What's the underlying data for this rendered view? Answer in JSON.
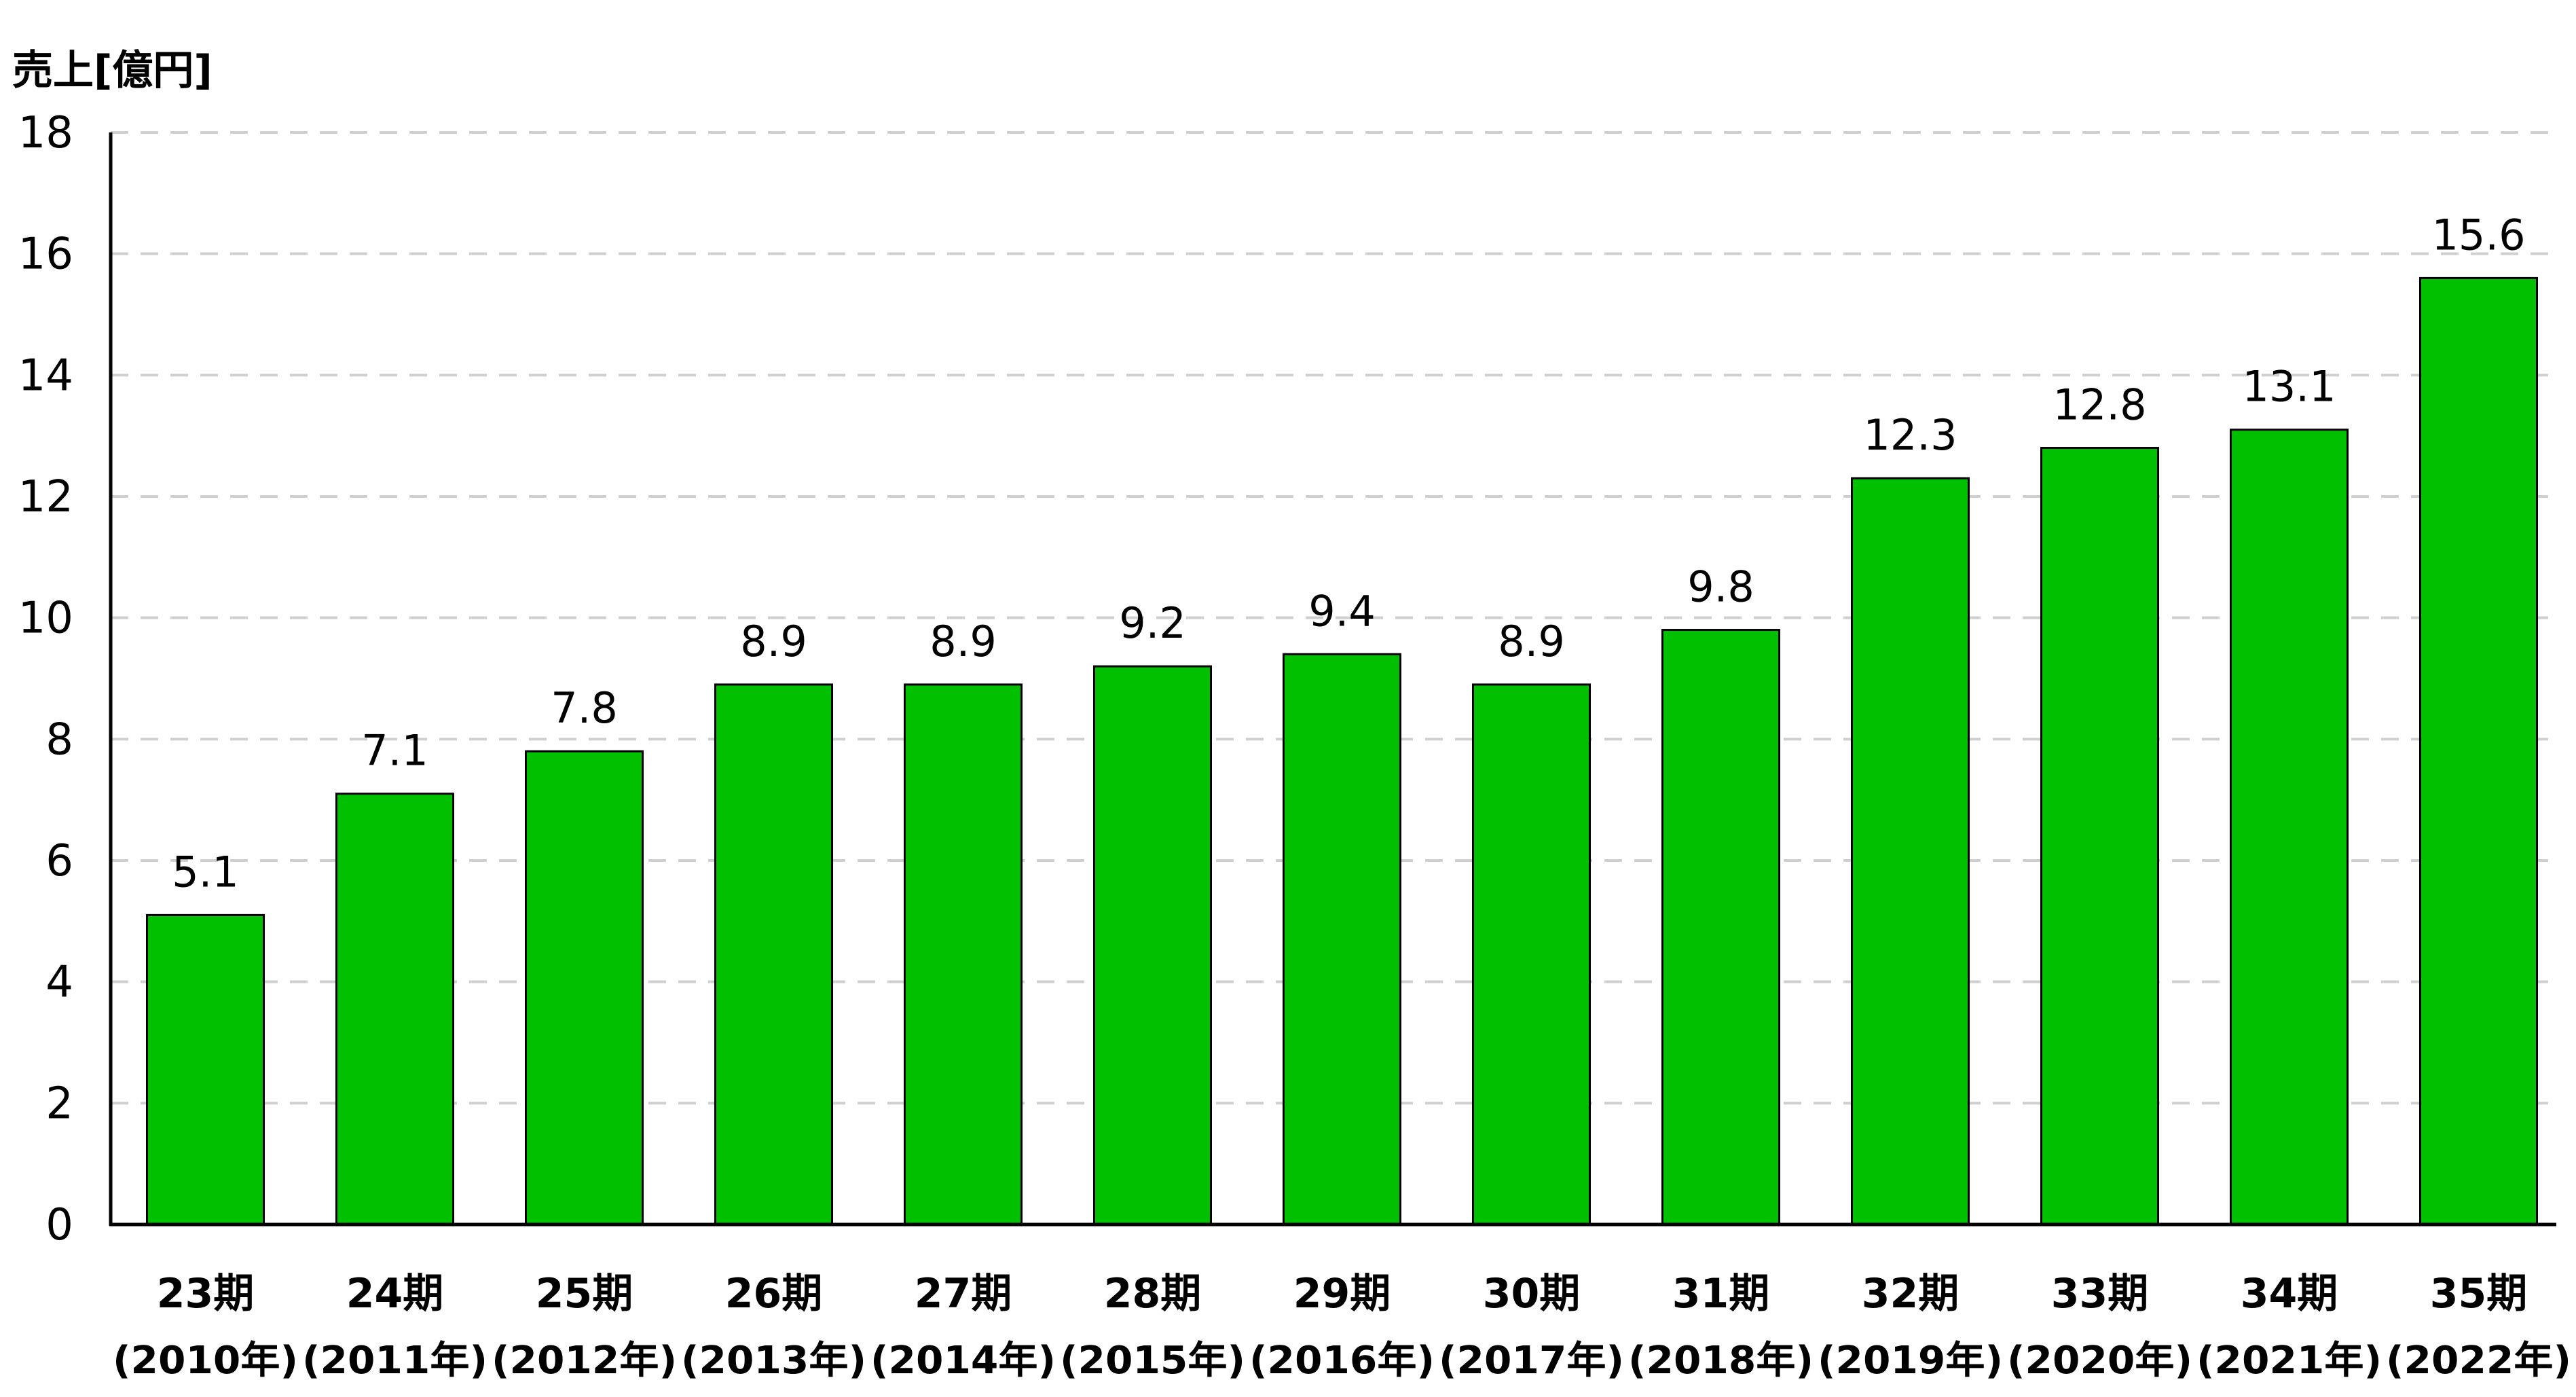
{
  "chart_data": {
    "type": "bar",
    "ylabel": "売上[億円]",
    "xlabel": "",
    "title": "",
    "ylim": [
      0,
      18
    ],
    "yticks": [
      0,
      2,
      4,
      6,
      8,
      10,
      12,
      14,
      16,
      18
    ],
    "grid": true,
    "legend": "none",
    "categories": [
      "23期",
      "24期",
      "25期",
      "26期",
      "27期",
      "28期",
      "29期",
      "30期",
      "31期",
      "32期",
      "33期",
      "34期",
      "35期"
    ],
    "category_years": [
      "(2010年)",
      "(2011年)",
      "(2012年)",
      "(2013年)",
      "(2014年)",
      "(2015年)",
      "(2016年)",
      "(2017年)",
      "(2018年)",
      "(2019年)",
      "(2020年)",
      "(2021年)",
      "(2022年)"
    ],
    "values": [
      5.1,
      7.1,
      7.8,
      8.9,
      8.9,
      9.2,
      9.4,
      8.9,
      9.8,
      12.3,
      12.8,
      13.1,
      15.6
    ],
    "value_labels": [
      "5.1",
      "7.1",
      "7.8",
      "8.9",
      "8.9",
      "9.2",
      "9.4",
      "8.9",
      "9.8",
      "12.3",
      "12.8",
      "13.1",
      "15.6"
    ],
    "colors": {
      "bar_fill": "#00c000",
      "bar_stroke": "#000000",
      "grid": "#d0d0d0",
      "axis": "#000000"
    }
  }
}
